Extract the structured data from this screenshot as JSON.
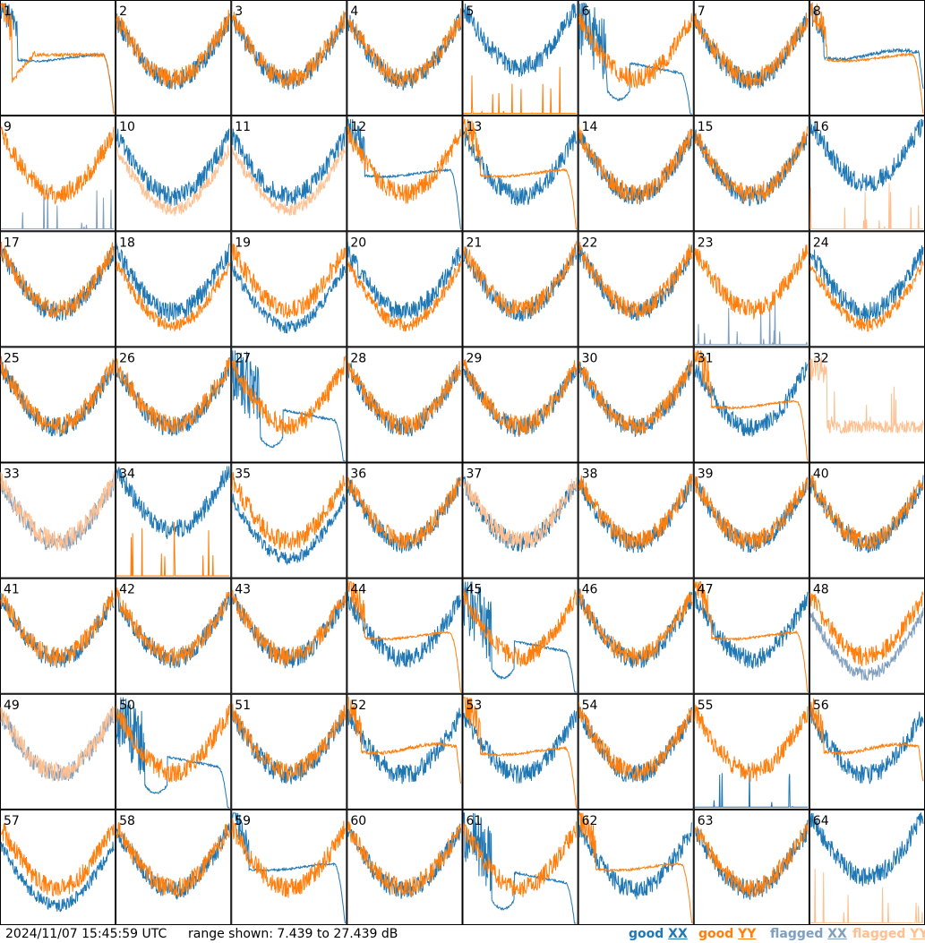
{
  "chart_data": {
    "type": "line",
    "title": "",
    "xlabel": "",
    "ylabel": "",
    "y_unit": "dB",
    "ylim": [
      7.439,
      27.439
    ],
    "grid": "8x8 small multiples, one panel per antenna",
    "series_names": [
      "good XX",
      "good YY",
      "flagged XX",
      "flagged YY"
    ],
    "panels": [
      {
        "id": "1",
        "xx": "good",
        "yy": "good",
        "xx_shape": "rolloff-low",
        "yy_shape": "rolloff-low-dip"
      },
      {
        "id": "2",
        "xx": "good",
        "yy": "good",
        "xx_shape": "normal",
        "yy_shape": "normal"
      },
      {
        "id": "3",
        "xx": "good",
        "yy": "good",
        "xx_shape": "normal",
        "yy_shape": "normal"
      },
      {
        "id": "4",
        "xx": "good",
        "yy": "good",
        "xx_shape": "normal",
        "yy_shape": "normal"
      },
      {
        "id": "5",
        "xx": "good",
        "yy": "good",
        "xx_shape": "normal-high",
        "yy_shape": "spiky-zero"
      },
      {
        "id": "6",
        "xx": "good",
        "yy": "good",
        "xx_shape": "rolloff-dip",
        "yy_shape": "normal"
      },
      {
        "id": "7",
        "xx": "good",
        "yy": "good",
        "xx_shape": "normal",
        "yy_shape": "normal"
      },
      {
        "id": "8",
        "xx": "good",
        "yy": "good",
        "xx_shape": "flat-mid",
        "yy_shape": "rolloff-low"
      },
      {
        "id": "9",
        "xx": "flagged",
        "yy": "good",
        "xx_shape": "spiky-zero",
        "yy_shape": "normal"
      },
      {
        "id": "10",
        "xx": "good",
        "yy": "flagged",
        "xx_shape": "normal",
        "yy_shape": "normal-low"
      },
      {
        "id": "11",
        "xx": "good",
        "yy": "flagged",
        "xx_shape": "normal",
        "yy_shape": "normal-low"
      },
      {
        "id": "12",
        "xx": "good",
        "yy": "good",
        "xx_shape": "rolloff-low",
        "yy_shape": "normal"
      },
      {
        "id": "13",
        "xx": "good",
        "yy": "good",
        "xx_shape": "normal",
        "yy_shape": "rolloff-low"
      },
      {
        "id": "14",
        "xx": "good",
        "yy": "good",
        "xx_shape": "normal",
        "yy_shape": "normal"
      },
      {
        "id": "15",
        "xx": "good",
        "yy": "good",
        "xx_shape": "normal",
        "yy_shape": "normal"
      },
      {
        "id": "16",
        "xx": "good",
        "yy": "flagged",
        "xx_shape": "normal-high",
        "yy_shape": "spiky-zero"
      },
      {
        "id": "17",
        "xx": "good",
        "yy": "good",
        "xx_shape": "normal",
        "yy_shape": "normal"
      },
      {
        "id": "18",
        "xx": "good",
        "yy": "good",
        "xx_shape": "normal",
        "yy_shape": "normal-low"
      },
      {
        "id": "19",
        "xx": "good",
        "yy": "good",
        "xx_shape": "normal-low",
        "yy_shape": "normal"
      },
      {
        "id": "20",
        "xx": "good",
        "yy": "good",
        "xx_shape": "normal",
        "yy_shape": "normal-low"
      },
      {
        "id": "21",
        "xx": "good",
        "yy": "good",
        "xx_shape": "normal",
        "yy_shape": "normal"
      },
      {
        "id": "22",
        "xx": "good",
        "yy": "good",
        "xx_shape": "normal",
        "yy_shape": "normal"
      },
      {
        "id": "23",
        "xx": "flagged",
        "yy": "good",
        "xx_shape": "spiky-zero",
        "yy_shape": "normal"
      },
      {
        "id": "24",
        "xx": "good",
        "yy": "good",
        "xx_shape": "normal",
        "yy_shape": "normal-low"
      },
      {
        "id": "25",
        "xx": "good",
        "yy": "good",
        "xx_shape": "normal",
        "yy_shape": "normal"
      },
      {
        "id": "26",
        "xx": "good",
        "yy": "good",
        "xx_shape": "normal",
        "yy_shape": "normal"
      },
      {
        "id": "27",
        "xx": "good",
        "yy": "good",
        "xx_shape": "rolloff-dip",
        "yy_shape": "normal"
      },
      {
        "id": "28",
        "xx": "good",
        "yy": "good",
        "xx_shape": "normal",
        "yy_shape": "normal"
      },
      {
        "id": "29",
        "xx": "good",
        "yy": "good",
        "xx_shape": "normal",
        "yy_shape": "normal"
      },
      {
        "id": "30",
        "xx": "good",
        "yy": "good",
        "xx_shape": "normal",
        "yy_shape": "normal"
      },
      {
        "id": "31",
        "xx": "good",
        "yy": "good",
        "xx_shape": "normal",
        "yy_shape": "rolloff-low"
      },
      {
        "id": "32",
        "xx": "flagged",
        "yy": "flagged",
        "xx_shape": "none",
        "yy_shape": "spiky-mid"
      },
      {
        "id": "33",
        "xx": "flagged",
        "yy": "flagged",
        "xx_shape": "normal",
        "yy_shape": "normal"
      },
      {
        "id": "34",
        "xx": "good",
        "yy": "good",
        "xx_shape": "normal-high",
        "yy_shape": "spiky-zero"
      },
      {
        "id": "35",
        "xx": "good",
        "yy": "good",
        "xx_shape": "normal-low",
        "yy_shape": "normal"
      },
      {
        "id": "36",
        "xx": "good",
        "yy": "good",
        "xx_shape": "normal",
        "yy_shape": "normal"
      },
      {
        "id": "37",
        "xx": "good",
        "yy": "flagged",
        "xx_shape": "normal",
        "yy_shape": "normal"
      },
      {
        "id": "38",
        "xx": "good",
        "yy": "good",
        "xx_shape": "normal",
        "yy_shape": "normal"
      },
      {
        "id": "39",
        "xx": "good",
        "yy": "good",
        "xx_shape": "normal",
        "yy_shape": "normal"
      },
      {
        "id": "40",
        "xx": "good",
        "yy": "good",
        "xx_shape": "normal",
        "yy_shape": "normal"
      },
      {
        "id": "41",
        "xx": "good",
        "yy": "good",
        "xx_shape": "normal",
        "yy_shape": "normal"
      },
      {
        "id": "42",
        "xx": "good",
        "yy": "good",
        "xx_shape": "normal",
        "yy_shape": "normal"
      },
      {
        "id": "43",
        "xx": "good",
        "yy": "good",
        "xx_shape": "normal",
        "yy_shape": "normal"
      },
      {
        "id": "44",
        "xx": "good",
        "yy": "good",
        "xx_shape": "normal",
        "yy_shape": "rolloff-low"
      },
      {
        "id": "45",
        "xx": "good",
        "yy": "good",
        "xx_shape": "rolloff-dip",
        "yy_shape": "normal"
      },
      {
        "id": "46",
        "xx": "good",
        "yy": "good",
        "xx_shape": "normal",
        "yy_shape": "normal"
      },
      {
        "id": "47",
        "xx": "good",
        "yy": "good",
        "xx_shape": "normal",
        "yy_shape": "rolloff-low"
      },
      {
        "id": "48",
        "xx": "flagged",
        "yy": "good",
        "xx_shape": "normal-low",
        "yy_shape": "normal"
      },
      {
        "id": "49",
        "xx": "flagged",
        "yy": "flagged",
        "xx_shape": "normal",
        "yy_shape": "normal"
      },
      {
        "id": "50",
        "xx": "good",
        "yy": "good",
        "xx_shape": "rolloff-dip",
        "yy_shape": "normal"
      },
      {
        "id": "51",
        "xx": "good",
        "yy": "good",
        "xx_shape": "normal",
        "yy_shape": "normal"
      },
      {
        "id": "52",
        "xx": "good",
        "yy": "good",
        "xx_shape": "normal",
        "yy_shape": "flat-mid"
      },
      {
        "id": "53",
        "xx": "good",
        "yy": "good",
        "xx_shape": "normal",
        "yy_shape": "rolloff-low"
      },
      {
        "id": "54",
        "xx": "good",
        "yy": "good",
        "xx_shape": "normal",
        "yy_shape": "normal"
      },
      {
        "id": "55",
        "xx": "good",
        "yy": "good",
        "xx_shape": "spiky-zero",
        "yy_shape": "normal"
      },
      {
        "id": "56",
        "xx": "good",
        "yy": "good",
        "xx_shape": "normal",
        "yy_shape": "flat-mid"
      },
      {
        "id": "57",
        "xx": "good",
        "yy": "good",
        "xx_shape": "normal-low",
        "yy_shape": "normal"
      },
      {
        "id": "58",
        "xx": "good",
        "yy": "good",
        "xx_shape": "normal",
        "yy_shape": "normal"
      },
      {
        "id": "59",
        "xx": "good",
        "yy": "good",
        "xx_shape": "rolloff-low",
        "yy_shape": "normal"
      },
      {
        "id": "60",
        "xx": "good",
        "yy": "good",
        "xx_shape": "normal",
        "yy_shape": "normal"
      },
      {
        "id": "61",
        "xx": "good",
        "yy": "good",
        "xx_shape": "rolloff-dip",
        "yy_shape": "normal"
      },
      {
        "id": "62",
        "xx": "good",
        "yy": "good",
        "xx_shape": "normal",
        "yy_shape": "rolloff-low"
      },
      {
        "id": "63",
        "xx": "good",
        "yy": "good",
        "xx_shape": "normal",
        "yy_shape": "normal"
      },
      {
        "id": "64",
        "xx": "good",
        "yy": "flagged",
        "xx_shape": "normal-high",
        "yy_shape": "spiky-zero"
      }
    ]
  },
  "footer": {
    "timestamp": "2024/11/07 15:45:59 UTC",
    "range": "range shown: 7.439 to 27.439 dB",
    "legend": [
      {
        "state": "good",
        "pol": "XX",
        "color": "#1f77b4"
      },
      {
        "state": "good",
        "pol": "YY",
        "color": "#ff7f0e"
      },
      {
        "state": "flagged",
        "pol": "XX",
        "color": "#7f9fbf"
      },
      {
        "state": "flagged",
        "pol": "YY",
        "color": "#ffbf8f"
      }
    ]
  },
  "colors": {
    "good_xx": "#1f77b4",
    "good_yy": "#ff7f0e",
    "flagged_xx": "#7f9fbf",
    "flagged_yy": "#ffbf8f"
  }
}
